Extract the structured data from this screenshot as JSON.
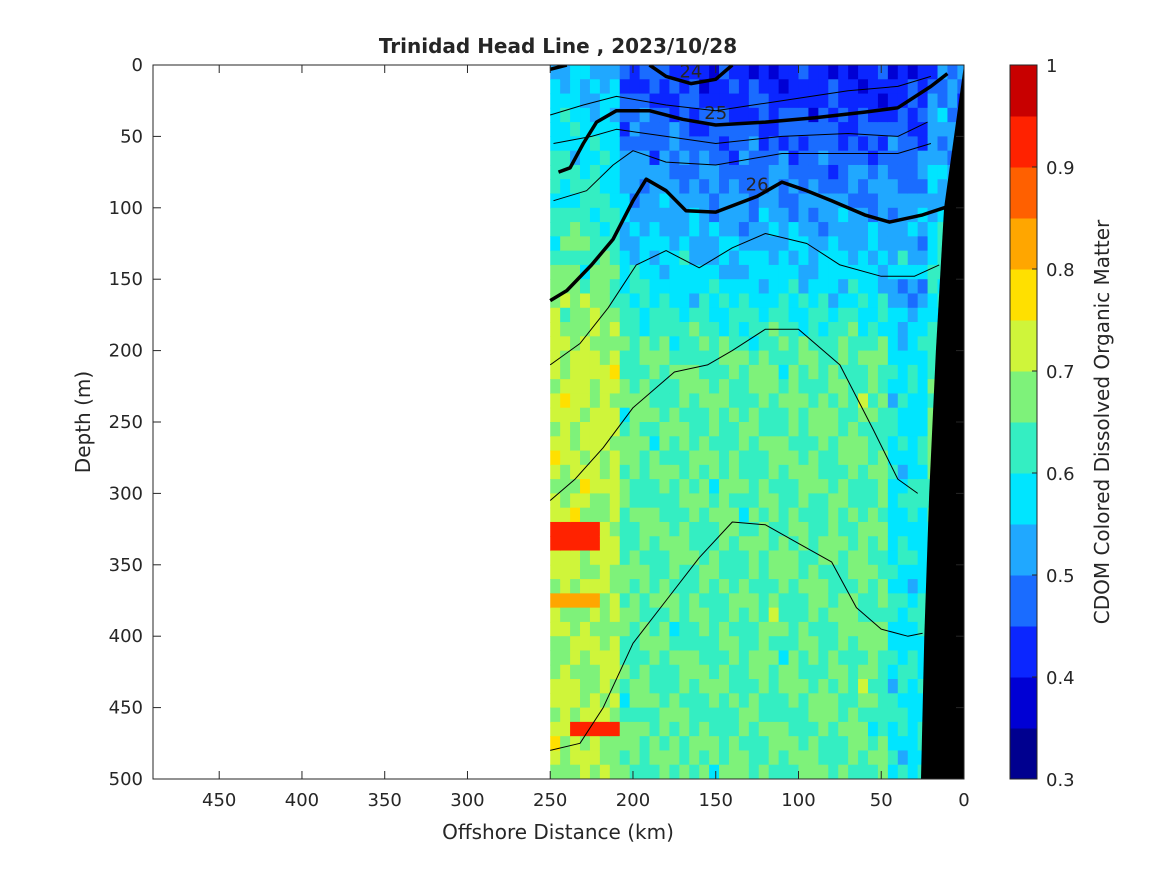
{
  "chart_data": {
    "type": "heatmap",
    "title": "Trinidad Head Line , 2023/10/28",
    "xlabel": "Offshore Distance (km)",
    "ylabel": "Depth (m)",
    "colorbar_label": "CDOM Colored Dissolved Organic Matter",
    "xlim": [
      490,
      0
    ],
    "ylim": [
      500,
      0
    ],
    "x_reversed": true,
    "y_reversed": true,
    "x_ticks": [
      450,
      400,
      350,
      300,
      250,
      200,
      150,
      100,
      50,
      0
    ],
    "y_ticks": [
      0,
      50,
      100,
      150,
      200,
      250,
      300,
      350,
      400,
      450,
      500
    ],
    "colorbar": {
      "range": [
        0.3,
        1
      ],
      "ticks": [
        0.3,
        0.4,
        0.5,
        0.6,
        0.7,
        0.8,
        0.9,
        1
      ],
      "levels": [
        0.3,
        0.35,
        0.4,
        0.45,
        0.5,
        0.55,
        0.6,
        0.65,
        0.7,
        0.75,
        0.8,
        0.85,
        0.9,
        0.95,
        1.0
      ],
      "colors": [
        "#00008f",
        "#0000d4",
        "#0b26ff",
        "#1a6cff",
        "#20a8ff",
        "#00e5ff",
        "#34eec2",
        "#7ef27a",
        "#cff53a",
        "#ffe000",
        "#ffa600",
        "#ff6000",
        "#ff2200",
        "#c80000"
      ]
    },
    "data_extent_km": [
      250,
      0
    ],
    "bottom_depth_profile": [
      [
        0,
        0
      ],
      [
        12,
        100
      ],
      [
        17,
        200
      ],
      [
        21,
        300
      ],
      [
        24,
        400
      ],
      [
        26,
        500
      ]
    ],
    "density_contours": [
      {
        "label": "24",
        "bold": true,
        "points": [
          [
            250,
            3
          ],
          [
            240,
            0
          ]
        ]
      },
      {
        "label": "24",
        "bold": true,
        "points": [
          [
            190,
            0
          ],
          [
            180,
            8
          ],
          [
            165,
            13
          ],
          [
            150,
            10
          ],
          [
            140,
            0
          ]
        ]
      },
      {
        "label": "25",
        "bold": true,
        "points": [
          [
            245,
            75
          ],
          [
            238,
            72
          ],
          [
            230,
            55
          ],
          [
            222,
            40
          ],
          [
            210,
            32
          ],
          [
            190,
            32
          ],
          [
            170,
            38
          ],
          [
            150,
            42
          ],
          [
            120,
            40
          ],
          [
            90,
            37
          ],
          [
            60,
            33
          ],
          [
            40,
            30
          ],
          [
            20,
            15
          ],
          [
            10,
            6
          ]
        ]
      },
      {
        "label": "26",
        "bold": true,
        "points": [
          [
            250,
            165
          ],
          [
            240,
            158
          ],
          [
            225,
            140
          ],
          [
            212,
            122
          ],
          [
            200,
            95
          ],
          [
            192,
            80
          ],
          [
            180,
            88
          ],
          [
            168,
            102
          ],
          [
            150,
            103
          ],
          [
            125,
            92
          ],
          [
            110,
            82
          ],
          [
            95,
            88
          ],
          [
            80,
            95
          ],
          [
            60,
            105
          ],
          [
            45,
            110
          ],
          [
            25,
            105
          ],
          [
            12,
            100
          ],
          [
            0,
            100
          ]
        ]
      },
      {
        "label": "",
        "bold": false,
        "points": [
          [
            250,
            35
          ],
          [
            230,
            28
          ],
          [
            210,
            22
          ],
          [
            180,
            28
          ],
          [
            150,
            32
          ],
          [
            110,
            25
          ],
          [
            70,
            18
          ],
          [
            40,
            15
          ],
          [
            20,
            8
          ]
        ]
      },
      {
        "label": "",
        "bold": false,
        "points": [
          [
            248,
            55
          ],
          [
            225,
            50
          ],
          [
            210,
            45
          ],
          [
            180,
            50
          ],
          [
            150,
            55
          ],
          [
            110,
            50
          ],
          [
            70,
            48
          ],
          [
            40,
            50
          ],
          [
            22,
            40
          ]
        ]
      },
      {
        "label": "",
        "bold": false,
        "points": [
          [
            248,
            95
          ],
          [
            228,
            88
          ],
          [
            212,
            70
          ],
          [
            200,
            60
          ],
          [
            180,
            68
          ],
          [
            150,
            70
          ],
          [
            110,
            62
          ],
          [
            70,
            62
          ],
          [
            40,
            62
          ],
          [
            20,
            55
          ]
        ]
      },
      {
        "label": "",
        "bold": false,
        "points": [
          [
            250,
            210
          ],
          [
            232,
            195
          ],
          [
            215,
            170
          ],
          [
            198,
            140
          ],
          [
            180,
            130
          ],
          [
            160,
            142
          ],
          [
            140,
            128
          ],
          [
            120,
            118
          ],
          [
            95,
            125
          ],
          [
            75,
            140
          ],
          [
            50,
            148
          ],
          [
            30,
            148
          ],
          [
            15,
            140
          ]
        ]
      },
      {
        "label": "",
        "bold": false,
        "points": [
          [
            250,
            305
          ],
          [
            235,
            290
          ],
          [
            218,
            268
          ],
          [
            200,
            240
          ],
          [
            175,
            215
          ],
          [
            155,
            210
          ],
          [
            140,
            200
          ],
          [
            120,
            185
          ],
          [
            100,
            185
          ],
          [
            75,
            210
          ],
          [
            55,
            255
          ],
          [
            40,
            290
          ],
          [
            28,
            300
          ]
        ]
      },
      {
        "label": "",
        "bold": false,
        "points": [
          [
            250,
            480
          ],
          [
            232,
            475
          ],
          [
            218,
            450
          ],
          [
            200,
            405
          ],
          [
            180,
            375
          ],
          [
            160,
            345
          ],
          [
            140,
            320
          ],
          [
            120,
            322
          ],
          [
            100,
            335
          ],
          [
            80,
            348
          ],
          [
            65,
            380
          ],
          [
            50,
            395
          ],
          [
            34,
            400
          ],
          [
            25,
            398
          ]
        ]
      }
    ]
  }
}
